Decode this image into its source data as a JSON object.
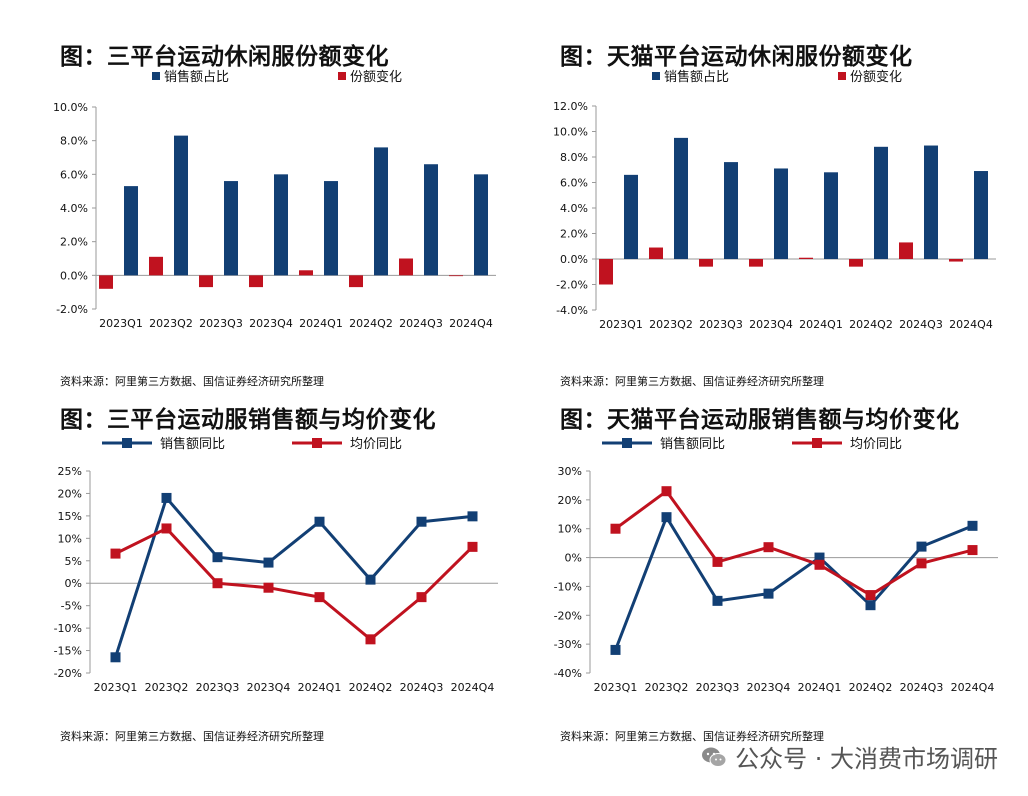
{
  "colors": {
    "blue": "#123f74",
    "red": "#c0121f",
    "axis": "#9a9a9a"
  },
  "source_text": "资料来源：阿里第三方数据、国信证券经济研究所整理",
  "watermark": {
    "text": "公众号 · 大消费市场调研",
    "icon": "wechat-logo-icon"
  },
  "chart_data": [
    {
      "type": "bar",
      "title": "图：三平台运动休闲服份额变化",
      "categories": [
        "2023Q1",
        "2023Q2",
        "2023Q3",
        "2023Q4",
        "2024Q1",
        "2024Q2",
        "2024Q3",
        "2024Q4"
      ],
      "series": [
        {
          "name": "销售额占比",
          "color": "blue",
          "values": [
            5.3,
            8.3,
            5.6,
            6.0,
            5.6,
            7.6,
            6.6,
            6.0
          ]
        },
        {
          "name": "份额变化",
          "color": "red",
          "values": [
            -0.8,
            1.1,
            -0.7,
            -0.7,
            0.3,
            -0.7,
            1.0,
            0.0
          ]
        }
      ],
      "ylim": [
        -2,
        10
      ],
      "yticks": [
        -2,
        0,
        2,
        4,
        6,
        8,
        10
      ],
      "ytick_labels": [
        "-2.0%",
        "0.0%",
        "2.0%",
        "4.0%",
        "6.0%",
        "8.0%",
        "10.0%"
      ],
      "legend": "top"
    },
    {
      "type": "bar",
      "title": "图：天猫平台运动休闲服份额变化",
      "categories": [
        "2023Q1",
        "2023Q2",
        "2023Q3",
        "2023Q4",
        "2024Q1",
        "2024Q2",
        "2024Q3",
        "2024Q4"
      ],
      "series": [
        {
          "name": "销售额占比",
          "color": "blue",
          "values": [
            6.6,
            9.5,
            7.6,
            7.1,
            6.8,
            8.8,
            8.9,
            6.9
          ]
        },
        {
          "name": "份额变化",
          "color": "red",
          "values": [
            -2.0,
            0.9,
            -0.6,
            -0.6,
            0.1,
            -0.6,
            1.3,
            -0.2
          ]
        }
      ],
      "ylim": [
        -4,
        12
      ],
      "yticks": [
        -4,
        -2,
        0,
        2,
        4,
        6,
        8,
        10,
        12
      ],
      "ytick_labels": [
        "-4.0%",
        "-2.0%",
        "0.0%",
        "2.0%",
        "4.0%",
        "6.0%",
        "8.0%",
        "10.0%",
        "12.0%"
      ],
      "legend": "top"
    },
    {
      "type": "line",
      "title": "图：三平台运动服销售额与均价变化",
      "categories": [
        "2023Q1",
        "2023Q2",
        "2023Q3",
        "2023Q4",
        "2024Q1",
        "2024Q2",
        "2024Q3",
        "2024Q4"
      ],
      "series": [
        {
          "name": "销售额同比",
          "color": "blue",
          "marker": "square",
          "values": [
            -16.5,
            19.0,
            5.8,
            4.6,
            13.7,
            0.8,
            13.7,
            14.9
          ]
        },
        {
          "name": "均价同比",
          "color": "red",
          "marker": "square",
          "values": [
            6.6,
            12.2,
            0.0,
            -1.0,
            -3.1,
            -12.5,
            -3.1,
            8.1
          ]
        }
      ],
      "ylim": [
        -20,
        25
      ],
      "yticks": [
        -20,
        -15,
        -10,
        -5,
        0,
        5,
        10,
        15,
        20,
        25
      ],
      "ytick_labels": [
        "-20%",
        "-15%",
        "-10%",
        "-5%",
        "0%",
        "5%",
        "10%",
        "15%",
        "20%",
        "25%"
      ],
      "legend": "top"
    },
    {
      "type": "line",
      "title": "图：天猫平台运动服销售额与均价变化",
      "categories": [
        "2023Q1",
        "2023Q2",
        "2023Q3",
        "2023Q4",
        "2024Q1",
        "2024Q2",
        "2024Q3",
        "2024Q4"
      ],
      "series": [
        {
          "name": "销售额同比",
          "color": "blue",
          "marker": "square",
          "values": [
            -32.0,
            14.0,
            -15.0,
            -12.5,
            0.0,
            -16.5,
            3.8,
            11.0
          ]
        },
        {
          "name": "均价同比",
          "color": "red",
          "marker": "square",
          "values": [
            10.0,
            23.0,
            -1.5,
            3.6,
            -2.5,
            -13.0,
            -2.0,
            2.6
          ]
        }
      ],
      "ylim": [
        -40,
        30
      ],
      "yticks": [
        -40,
        -30,
        -20,
        -10,
        0,
        10,
        20,
        30
      ],
      "ytick_labels": [
        "-40%",
        "-30%",
        "-20%",
        "-10%",
        "0%",
        "10%",
        "20%",
        "30%"
      ],
      "legend": "top"
    }
  ]
}
